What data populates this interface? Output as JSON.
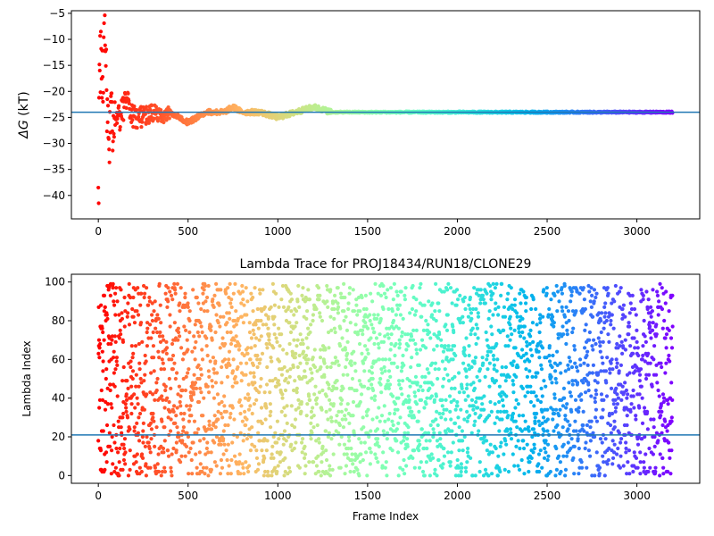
{
  "chart_data": [
    {
      "type": "scatter",
      "title": "",
      "xlabel": "",
      "ylabel": "ΔG (kT)",
      "ylabel_symbol": "ΔG",
      "ylabel_unit": "(kT)",
      "xlim": [
        -150,
        3350
      ],
      "ylim": [
        -44.5,
        -4.5
      ],
      "x_ticks": [
        0,
        500,
        1000,
        1500,
        2000,
        2500,
        3000
      ],
      "y_ticks": [
        -40,
        -35,
        -30,
        -25,
        -20,
        -15,
        -10,
        -5
      ],
      "reference_line": -24,
      "colormap": "rainbow",
      "x_max": 3200,
      "series": [
        {
          "x": [
            0,
            10,
            20,
            30,
            40,
            50,
            60,
            70,
            80,
            90,
            100,
            120,
            140,
            160,
            180,
            200,
            250,
            300,
            350,
            400,
            450,
            500,
            550,
            600,
            650,
            700,
            750,
            800,
            900,
            1000,
            1100,
            1200,
            1300,
            1400,
            1500,
            1600,
            1700,
            1800,
            1900,
            2000,
            2100,
            2200,
            2300,
            2400,
            2500,
            2600,
            2700,
            2800,
            2900,
            3000,
            3100,
            3200
          ],
          "y": [
            -40,
            -14,
            -20,
            -13,
            -9,
            -24,
            -30,
            -19,
            -27,
            -25,
            -24,
            -25,
            -23,
            -22,
            -24,
            -25,
            -25,
            -24,
            -25,
            -24,
            -25,
            -26,
            -25,
            -24,
            -24,
            -24,
            -23,
            -24,
            -24,
            -25,
            -24,
            -23,
            -24,
            -24,
            -24,
            -24,
            -24,
            -24,
            -24,
            -24,
            -24,
            -24,
            -24,
            -24,
            -24,
            -24,
            -24,
            -24,
            -24,
            -24,
            -24,
            -24
          ]
        }
      ]
    },
    {
      "type": "scatter",
      "title": "Lambda Trace for PROJ18434/RUN18/CLONE29",
      "xlabel": "Frame Index",
      "ylabel": "Lambda Index",
      "xlim": [
        -150,
        3350
      ],
      "ylim": [
        -4,
        104
      ],
      "x_ticks": [
        0,
        500,
        1000,
        1500,
        2000,
        2500,
        3000
      ],
      "y_ticks": [
        0,
        20,
        40,
        60,
        80,
        100
      ],
      "reference_line": 21,
      "colormap": "rainbow",
      "n_points": 3200,
      "x_max": 3200,
      "y_range": [
        0,
        99
      ]
    }
  ],
  "colors": {
    "reference_line": "#1f77b4",
    "axes": "#000000",
    "background": "#ffffff"
  }
}
